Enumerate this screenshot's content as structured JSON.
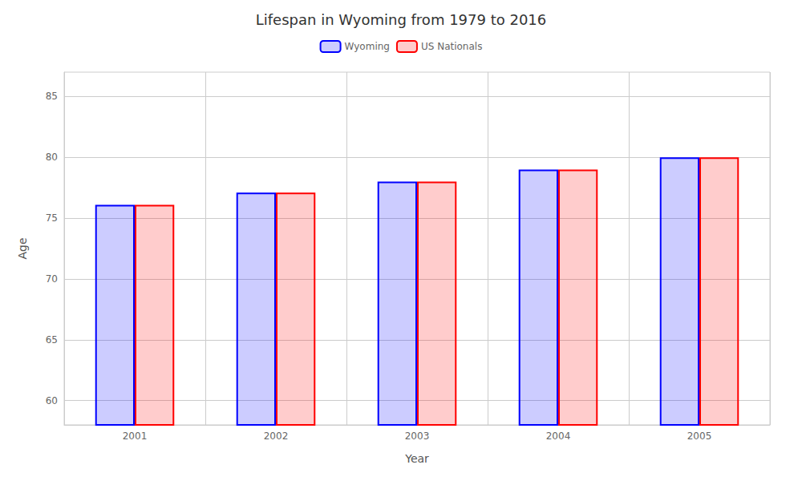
{
  "chart_data": {
    "type": "bar",
    "title": "Lifespan in Wyoming from 1979 to 2016",
    "xlabel": "Year",
    "ylabel": "Age",
    "categories": [
      "2001",
      "2002",
      "2003",
      "2004",
      "2005"
    ],
    "series": [
      {
        "name": "Wyoming",
        "color": "#0000ff",
        "values": [
          76.1,
          77.1,
          78.0,
          79.0,
          80.0
        ]
      },
      {
        "name": "US Nationals",
        "color": "#ff0000",
        "values": [
          76.1,
          77.1,
          78.0,
          79.0,
          80.0
        ]
      }
    ],
    "ylim": [
      58,
      87
    ],
    "yticks": [
      60,
      65,
      70,
      75,
      80,
      85
    ],
    "grid": true,
    "legend": "top"
  }
}
